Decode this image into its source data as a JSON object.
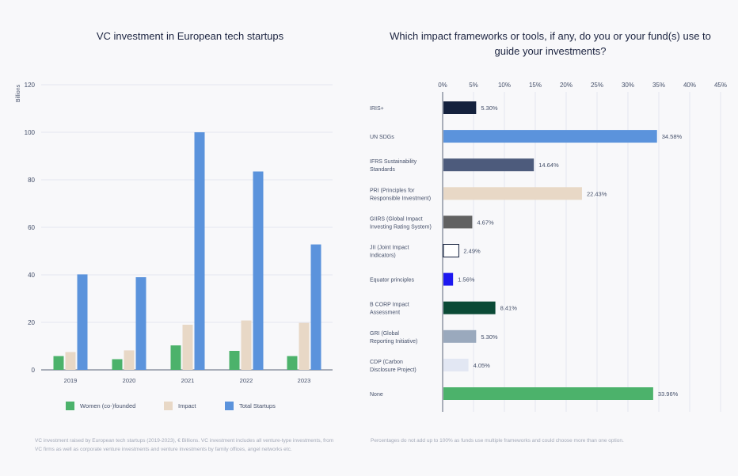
{
  "colors": {
    "women": "#4cb26b",
    "impact": "#e8d8c6",
    "total": "#5b93dc",
    "grid": "#e3e6f0",
    "axis": "#5a6478"
  },
  "chart_data": [
    {
      "type": "bar",
      "title": "VC investment in European tech startups",
      "ylabel": "Billions",
      "xlabel": "",
      "ylim": [
        0,
        120
      ],
      "yticks": [
        0,
        20,
        40,
        60,
        80,
        100,
        120
      ],
      "categories": [
        "2019",
        "2020",
        "2021",
        "2022",
        "2023"
      ],
      "series": [
        {
          "name": "Women (co-)founded",
          "values": [
            5.8,
            4.5,
            10.3,
            8.0,
            5.8
          ]
        },
        {
          "name": "Impact",
          "values": [
            7.5,
            8.2,
            19.0,
            20.8,
            19.8
          ]
        },
        {
          "name": "Total Startups",
          "values": [
            40.2,
            39.0,
            100.0,
            83.5,
            52.8
          ]
        }
      ],
      "legend": "bottom",
      "grid": true,
      "note": "VC investment raised by European tech startups (2019-2023), € Billions. VC investment includes all venture-type investments, from VC firms as well as corporate venture investments and venture investments by family offices, angel networks etc."
    },
    {
      "type": "bar",
      "orientation": "horizontal",
      "title": "Which impact frameworks or tools, if any, do you or your fund(s) use to guide your investments?",
      "xlim": [
        0,
        45
      ],
      "xticks": [
        "0%",
        "5%",
        "10%",
        "15%",
        "20%",
        "25%",
        "30%",
        "35%",
        "40%",
        "45%"
      ],
      "grid": true,
      "categories": [
        {
          "lines": [
            "IRIS+"
          ],
          "value": 5.3,
          "label": "5.30%",
          "color": "#14213d"
        },
        {
          "lines": [
            "UN SDGs"
          ],
          "value": 34.58,
          "label": "34.58%",
          "color": "#5b93dc"
        },
        {
          "lines": [
            "IFRS Sustainability",
            "Standards"
          ],
          "value": 14.64,
          "label": "14.64%",
          "color": "#4d5b7c"
        },
        {
          "lines": [
            "PRI (Principles for",
            "Responsible Investment)"
          ],
          "value": 22.43,
          "label": "22.43%",
          "color": "#e8d8c6"
        },
        {
          "lines": [
            "GIIRS (Global Impact",
            "Investing Rating System)"
          ],
          "value": 4.67,
          "label": "4.67%",
          "color": "#616161"
        },
        {
          "lines": [
            "JII (Joint Impact",
            "Indicators)"
          ],
          "value": 2.49,
          "label": "2.49%",
          "color": "#ffffff"
        },
        {
          "lines": [
            "Equator principles"
          ],
          "value": 1.56,
          "label": "1.56%",
          "color": "#1d18f0"
        },
        {
          "lines": [
            "B CORP Impact",
            "Assessment"
          ],
          "value": 8.41,
          "label": "8.41%",
          "color": "#0b4a36"
        },
        {
          "lines": [
            "GRI (Global",
            "Reporting Initiative)"
          ],
          "value": 5.3,
          "label": "5.30%",
          "color": "#9aa9bd"
        },
        {
          "lines": [
            "CDP (Carbon",
            "Disclosure Project)"
          ],
          "value": 4.05,
          "label": "4.05%",
          "color": "#e2e7f3"
        },
        {
          "lines": [
            "None"
          ],
          "value": 33.96,
          "label": "33.96%",
          "color": "#4cb26b"
        }
      ],
      "note": "Percentages do not add up to 100% as funds use multiple frameworks and could choose more than one option."
    }
  ]
}
